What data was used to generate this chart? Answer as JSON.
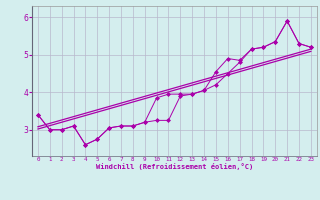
{
  "x_values": [
    0,
    1,
    2,
    3,
    4,
    5,
    6,
    7,
    8,
    9,
    10,
    11,
    12,
    13,
    14,
    15,
    16,
    17,
    18,
    19,
    20,
    21,
    22,
    23
  ],
  "line1_y": [
    3.4,
    3.0,
    3.0,
    3.1,
    2.6,
    2.75,
    3.05,
    3.1,
    3.1,
    3.2,
    3.25,
    3.25,
    3.9,
    3.95,
    4.05,
    4.2,
    4.5,
    4.8,
    5.15,
    5.2,
    5.35,
    5.9,
    5.3,
    5.2
  ],
  "line2_y": [
    3.4,
    3.0,
    3.0,
    3.1,
    2.6,
    2.75,
    3.05,
    3.1,
    3.1,
    3.2,
    3.85,
    3.95,
    3.95,
    3.95,
    4.05,
    4.55,
    4.9,
    4.85,
    5.15,
    5.2,
    5.35,
    5.9,
    5.3,
    5.2
  ],
  "trend1_x": [
    0,
    23
  ],
  "trend1_y": [
    3.08,
    5.15
  ],
  "trend2_x": [
    0,
    23
  ],
  "trend2_y": [
    3.02,
    5.09
  ],
  "line_color": "#aa00aa",
  "bg_color": "#d4eeee",
  "grid_color": "#b8b8cc",
  "xlabel": "Windchill (Refroidissement éolien,°C)",
  "xlim": [
    -0.5,
    23.5
  ],
  "ylim": [
    2.3,
    6.3
  ],
  "yticks": [
    3,
    4,
    5,
    6
  ],
  "xtick_labels": [
    "0",
    "1",
    "2",
    "3",
    "4",
    "5",
    "6",
    "7",
    "8",
    "9",
    "10",
    "11",
    "12",
    "13",
    "14",
    "15",
    "16",
    "17",
    "18",
    "19",
    "20",
    "21",
    "22",
    "23"
  ]
}
